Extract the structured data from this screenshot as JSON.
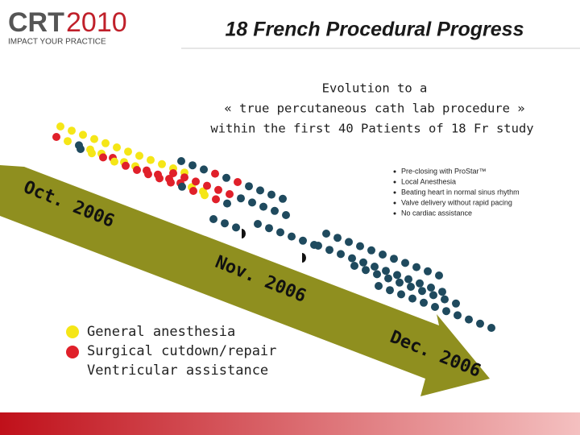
{
  "logo": {
    "brand": "CRT",
    "year": "2010",
    "tagline": "IMPACT YOUR PRACTICE"
  },
  "title": "18 French Procedural Progress",
  "subtitle": [
    "Evolution to a",
    "« true percutaneous cath lab procedure »",
    "within the first 40 Patients of 18 Fr study"
  ],
  "bullets": [
    "Pre-closing with ProStar™",
    "Local Anesthesia",
    "Beating heart in normal sinus rhythm",
    "Valve delivery without rapid pacing",
    "No cardiac assistance"
  ],
  "timeline": [
    "Oct. 2006",
    "Nov. 2006",
    "Dec. 2006"
  ],
  "legend": [
    "General anesthesia",
    "Surgical cutdown/repair",
    "Ventricular assistance"
  ]
}
